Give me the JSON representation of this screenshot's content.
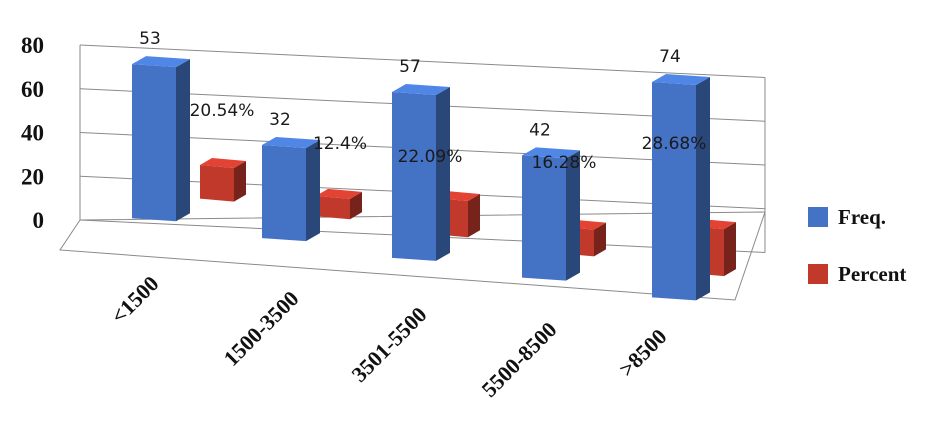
{
  "chart_data": {
    "type": "bar",
    "style": "3d-clustered-column",
    "categories": [
      "<1500",
      "1500-3500",
      "3501-5500",
      "5500-8500",
      ">8500"
    ],
    "series": [
      {
        "name": "Freq.",
        "values": [
          53,
          32,
          57,
          42,
          74
        ],
        "labels": [
          "53",
          "32",
          "57",
          "42",
          "74"
        ],
        "color": "#4472c4"
      },
      {
        "name": "Percent",
        "values": [
          20.54,
          12.4,
          22.09,
          16.28,
          28.68
        ],
        "labels": [
          "20.54%",
          "12.4%",
          "22.09%",
          "16.28%",
          "28.68%"
        ],
        "color": "#c0392b"
      }
    ],
    "yticks": [
      "0",
      "20",
      "40",
      "60",
      "80"
    ],
    "ylim": [
      0,
      80
    ],
    "grid": true,
    "legend": "right"
  }
}
